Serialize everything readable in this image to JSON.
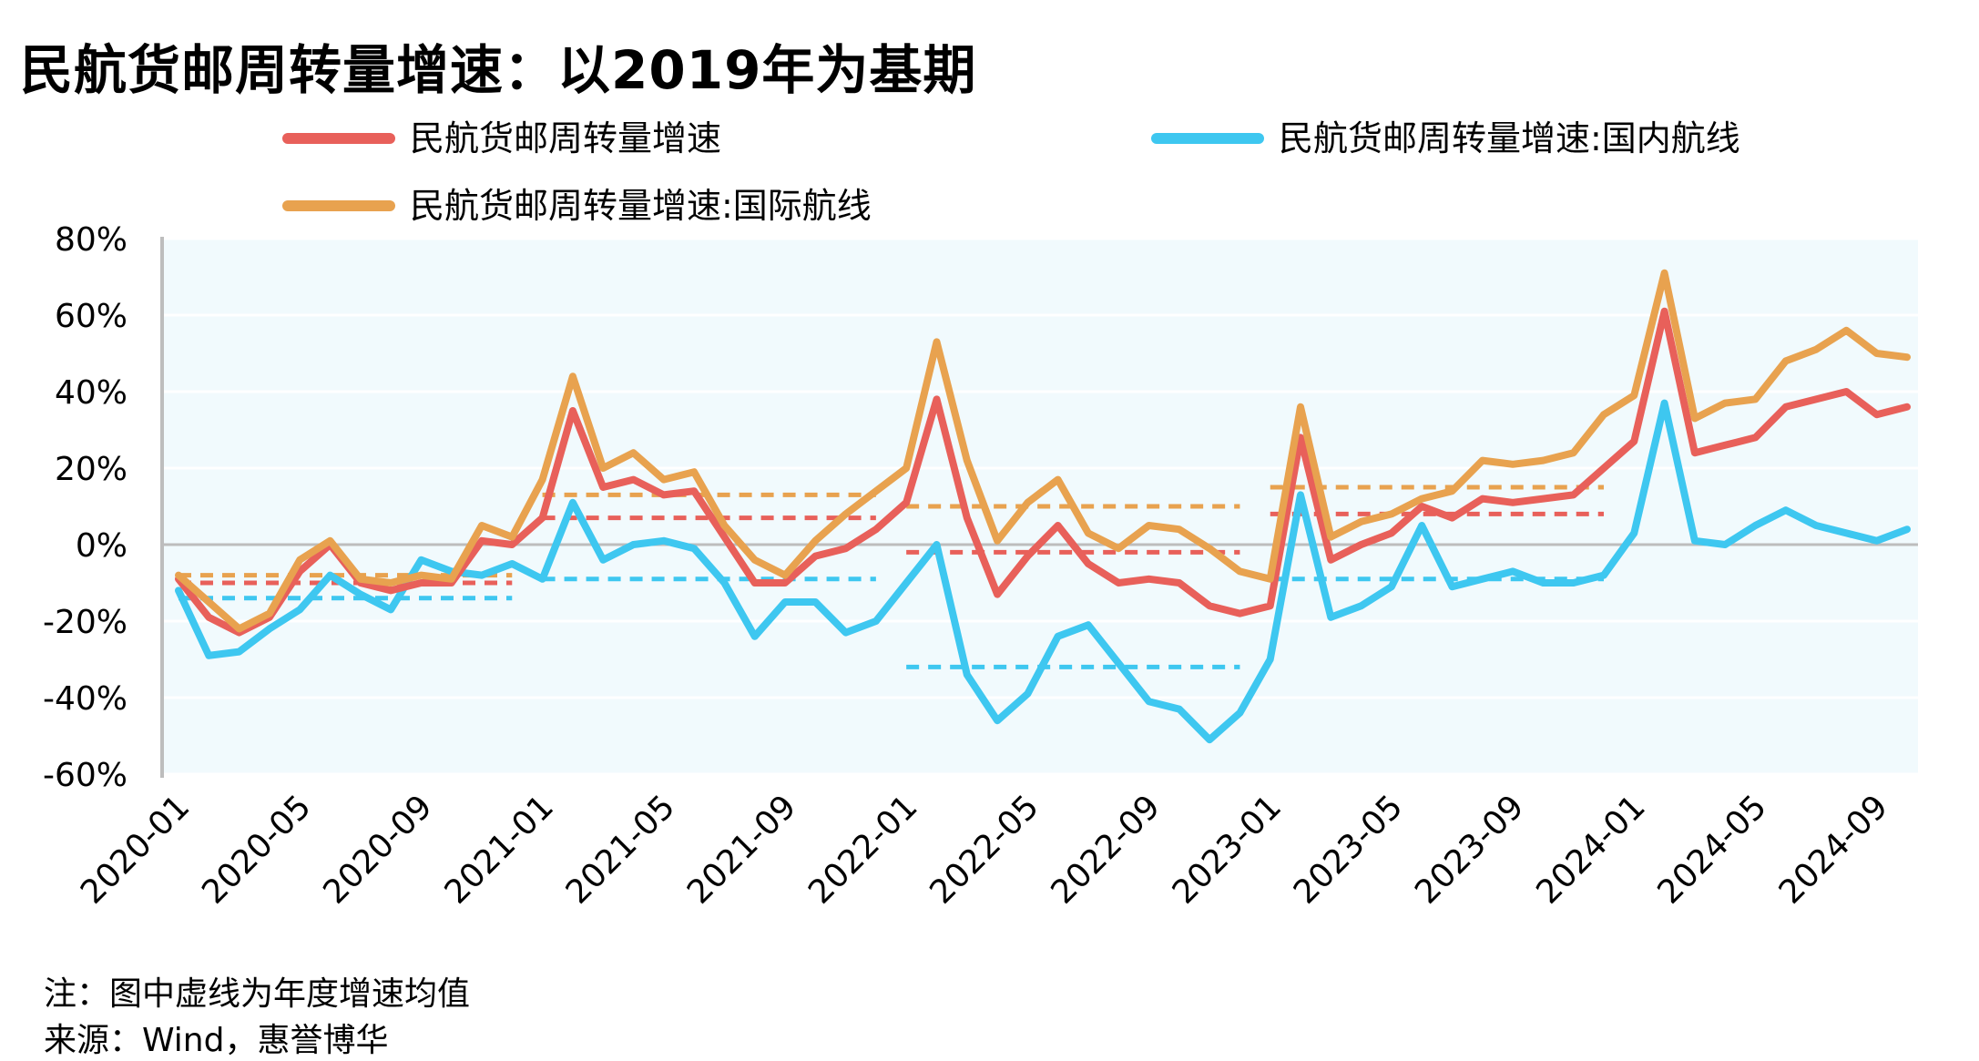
{
  "title": "民航货邮周转量增速：以2019年为基期",
  "note": "注：图中虚线为年度增速均值",
  "source": "来源：Wind，惠誉博华",
  "chart_data": {
    "type": "line",
    "title": "民航货邮周转量增速：以2019年为基期",
    "xlabel": "",
    "ylabel": "",
    "ylim": [
      -60,
      80
    ],
    "yticks": [
      80,
      60,
      40,
      20,
      0,
      -20,
      -40,
      -60
    ],
    "ytick_labels": [
      "80%",
      "60%",
      "40%",
      "20%",
      "0%",
      "-20%",
      "-40%",
      "-60%"
    ],
    "x_tick_labels": [
      "2020-01",
      "2020-05",
      "2020-09",
      "2021-01",
      "2021-05",
      "2021-09",
      "2022-01",
      "2022-05",
      "2022-09",
      "2023-01",
      "2023-05",
      "2023-09",
      "2024-01",
      "2024-05",
      "2024-09"
    ],
    "grid": true,
    "plot_background": "#f1fafd",
    "legend_position": "top",
    "series": [
      {
        "name": "民航货邮周转量增速",
        "color": "#e8605a",
        "values": [
          -9,
          -19,
          -23,
          -19,
          -7,
          0,
          -10,
          -12,
          -10,
          -10,
          1,
          0,
          7,
          35,
          15,
          17,
          13,
          14,
          2,
          -10,
          -10,
          -3,
          -1,
          4,
          11,
          38,
          7,
          -13,
          -3,
          5,
          -5,
          -10,
          -9,
          -10,
          -16,
          -18,
          -16,
          28,
          -4,
          0,
          3,
          10,
          7,
          12,
          11,
          12,
          13,
          20,
          27,
          61,
          24,
          26,
          28,
          36,
          38,
          40,
          34,
          36
        ],
        "annual_means": [
          -10,
          7,
          -2,
          8
        ]
      },
      {
        "name": "民航货邮周转量增速:国内航线",
        "color": "#3ec7f0",
        "values": [
          -12,
          -29,
          -28,
          -22,
          -17,
          -8,
          -13,
          -17,
          -4,
          -7,
          -8,
          -5,
          -9,
          11,
          -4,
          0,
          1,
          -1,
          -10,
          -24,
          -15,
          -15,
          -23,
          -20,
          -10,
          0,
          -34,
          -46,
          -39,
          -24,
          -21,
          -31,
          -41,
          -43,
          -51,
          -44,
          -30,
          13,
          -19,
          -16,
          -11,
          5,
          -11,
          -9,
          -7,
          -10,
          -10,
          -8,
          3,
          37,
          1,
          0,
          5,
          9,
          5,
          3,
          1,
          4
        ],
        "annual_means": [
          -14,
          -9,
          -32,
          -9
        ]
      },
      {
        "name": "民航货邮周转量增速:国际航线",
        "color": "#e8a24f",
        "values": [
          -8,
          -15,
          -22,
          -18,
          -4,
          1,
          -9,
          -10,
          -8,
          -9,
          5,
          2,
          17,
          44,
          20,
          24,
          17,
          19,
          5,
          -4,
          -8,
          1,
          8,
          14,
          20,
          53,
          22,
          1,
          11,
          17,
          3,
          -1,
          5,
          4,
          -1,
          -7,
          -9,
          36,
          2,
          6,
          8,
          12,
          14,
          22,
          21,
          22,
          24,
          34,
          39,
          71,
          33,
          37,
          38,
          48,
          51,
          56,
          50,
          49
        ],
        "annual_means": [
          -8,
          13,
          10,
          15
        ]
      }
    ]
  }
}
